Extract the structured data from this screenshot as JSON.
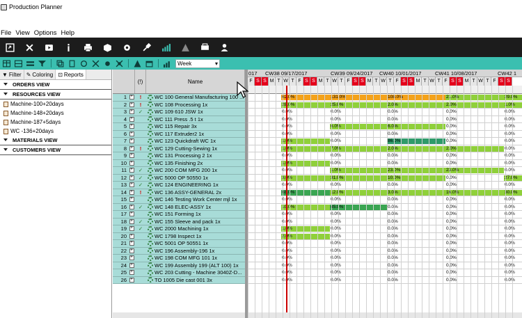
{
  "window": {
    "title": "Production Planner"
  },
  "menu": [
    "File",
    "View",
    "Options",
    "Help"
  ],
  "toolbar_main": [
    "save-icon",
    "close-icon",
    "play-icon",
    "info-icon",
    "print-icon",
    "box-icon",
    "gear-icon",
    "tools-icon",
    "bar-chart-icon",
    "warning-icon",
    "truck-icon",
    "user-icon"
  ],
  "toolbar_sub": {
    "icons": [
      "table-icon",
      "table-split-icon",
      "list-icon",
      "filter-icon",
      "copy-icon",
      "paste-icon",
      "refresh-icon",
      "plan-icon",
      "replan-icon",
      "unplan-icon",
      "warning-icon",
      "schedule-icon",
      "bar-chart-icon"
    ],
    "period": "Week"
  },
  "left_panel": {
    "tabs": [
      "Filter",
      "Coloring",
      "Reports"
    ],
    "sections": [
      {
        "title": "ORDERS VIEW",
        "items": []
      },
      {
        "title": "RESOURCES VIEW",
        "items": [
          "Machine-100+20days",
          "Machine-148+20days",
          "Machine-187+5days",
          "WC -136+20days"
        ]
      },
      {
        "title": "MATERIALS VIEW",
        "items": []
      },
      {
        "title": "CUSTOMERS VIEW",
        "items": []
      }
    ]
  },
  "grid": {
    "col_flag": "(!)",
    "col_name": "Name",
    "rows": [
      {
        "n": "1",
        "flag": "!",
        "name": "WC 100 General Manufacturing 100 ..."
      },
      {
        "n": "2",
        "flag": "!",
        "name": "WC 108 Processing 1x"
      },
      {
        "n": "3",
        "flag": "✓",
        "name": "WC 109 610 JSW 1x"
      },
      {
        "n": "4",
        "flag": "",
        "name": "WC 111 Press .5 t 1x"
      },
      {
        "n": "5",
        "flag": "",
        "name": "WC 115 Repair 3x"
      },
      {
        "n": "6",
        "flag": "",
        "name": "WC 117 Extruder2 1x"
      },
      {
        "n": "7",
        "flag": "",
        "name": "WC 123 Quickdraft WC 1x"
      },
      {
        "n": "8",
        "flag": "!",
        "name": "WC 129 Cutting-Sewing 1x"
      },
      {
        "n": "9",
        "flag": "",
        "name": "WC 131 Processing 2 1x"
      },
      {
        "n": "10",
        "flag": "",
        "name": "WC 135 Finishing 2x"
      },
      {
        "n": "11",
        "flag": "✓",
        "name": "WC 200 COM MFG 200 1x"
      },
      {
        "n": "12",
        "flag": "✓",
        "name": "WC 5000 OP 50550 1x"
      },
      {
        "n": "13",
        "flag": "✓",
        "name": "WC 124 ENGINEERING 1x"
      },
      {
        "n": "14",
        "flag": "!",
        "name": "WC 136 ASSY-GENERAL 2x"
      },
      {
        "n": "15",
        "flag": "",
        "name": "WC 146 Testing Work Center mjl 1x"
      },
      {
        "n": "16",
        "flag": "✓",
        "name": "WC 148 ELEC-ASSY 1x"
      },
      {
        "n": "17",
        "flag": "",
        "name": "WC 151 Forming 1x"
      },
      {
        "n": "18",
        "flag": "✓",
        "name": "WC 155 Sleeve and pack 1x"
      },
      {
        "n": "19",
        "flag": "✓",
        "name": "WC 2000 Machining 1x"
      },
      {
        "n": "20",
        "flag": "",
        "name": "WC 1798 Inspect 1x"
      },
      {
        "n": "21",
        "flag": "",
        "name": "WC 5001 OP 50551 1x"
      },
      {
        "n": "22",
        "flag": "",
        "name": "WC 196 Assembly-196 1x"
      },
      {
        "n": "23",
        "flag": "",
        "name": "WC 198 COM MFG 101 1x"
      },
      {
        "n": "24",
        "flag": "",
        "name": "WC 199 Assembly 199 (ALT 100) 1x"
      },
      {
        "n": "25",
        "flag": "",
        "name": "WC 203 Cutting - Machine 3040Z-D..."
      },
      {
        "n": "26",
        "flag": "",
        "name": "TO 1005 Die cast 001 3x"
      }
    ]
  },
  "timeline": {
    "weeks": [
      "017",
      "CW38  09/17/2017",
      "CW39  09/24/2017",
      "CW40  10/01/2017",
      "CW41  10/08/2017",
      "CW42  1"
    ],
    "days": [
      "F",
      "S",
      "S",
      "M",
      "T",
      "W",
      "T",
      "F",
      "S",
      "S",
      "M",
      "T",
      "W",
      "T",
      "F",
      "S",
      "S",
      "M",
      "T",
      "W",
      "T",
      "F",
      "S",
      "S",
      "M",
      "T",
      "W",
      "T",
      "F",
      "S",
      "S",
      "M",
      "T",
      "W",
      "T",
      "F",
      "S",
      "S"
    ],
    "load": [
      [
        "62.0%",
        "131.0%",
        "108.0%",
        "21.0%",
        "29.0%"
      ],
      [
        "28.0%",
        "25.0%",
        "2.0%",
        "2.0%",
        "1.0%"
      ],
      [
        "0.0%",
        "0.0%",
        "0.0%",
        "0.0%",
        "0.0%"
      ],
      [
        "0.0%",
        "0.0%",
        "0.0%",
        "0.0%",
        "0.0%"
      ],
      [
        "0.0%",
        "6.0%",
        "6.0%",
        "0.0%",
        "0.0%"
      ],
      [
        "0.0%",
        "0.0%",
        "0.0%",
        "0.0%",
        "0.0%"
      ],
      [
        "1.0%",
        "0.0%",
        "86.0%",
        "0.0%",
        "0.0%"
      ],
      [
        "1.0%",
        "7.0%",
        "2.0%",
        "2.0%",
        "0.0%"
      ],
      [
        "0.0%",
        "0.0%",
        "0.0%",
        "0.0%",
        "0.0%"
      ],
      [
        "1.0%",
        "0.0%",
        "0.0%",
        "0.0%",
        "0.0%"
      ],
      [
        "0.0%",
        "1.0%",
        "23.0%",
        "23.0%",
        "0.0%"
      ],
      [
        "3.0%",
        "31.0%",
        "10.0%",
        "0.0%",
        "27.0%"
      ],
      [
        "0.0%",
        "0.0%",
        "0.0%",
        "0.0%",
        "0.0%"
      ],
      [
        "68.0%",
        "12.0%",
        "3.0%",
        "16.0%",
        "30.0%"
      ],
      [
        "0.0%",
        "0.0%",
        "0.0%",
        "0.0%",
        "0.0%"
      ],
      [
        "10.0%",
        "45.0%",
        "0.0%",
        "0.0%",
        "0.0%"
      ],
      [
        "0.0%",
        "0.0%",
        "0.0%",
        "0.0%",
        "0.0%"
      ],
      [
        "0.0%",
        "0.0%",
        "0.0%",
        "0.0%",
        "0.0%"
      ],
      [
        "1.0%",
        "0.0%",
        "0.0%",
        "0.0%",
        "0.0%"
      ],
      [
        "2.0%",
        "0.0%",
        "0.0%",
        "0.0%",
        "0.0%"
      ],
      [
        "0.0%",
        "0.0%",
        "0.0%",
        "0.0%",
        "0.0%"
      ],
      [
        "0.0%",
        "0.0%",
        "0.0%",
        "0.0%",
        "0.0%"
      ],
      [
        "0.0%",
        "0.0%",
        "0.0%",
        "0.0%",
        "0.0%"
      ],
      [
        "0.0%",
        "0.0%",
        "0.0%",
        "0.0%",
        "0.0%"
      ],
      [
        "0.0%",
        "0.0%",
        "0.0%",
        "0.0%",
        "0.0%"
      ],
      [
        "0.0%",
        "0.0%",
        "0.0%",
        "0.0%",
        "0.0%"
      ]
    ],
    "colors": {
      "low": "#8fd03a",
      "mid": "#3aa552",
      "high": "#f4a21a",
      "zero": "#ffffff",
      "weekend": "#e4001b"
    }
  }
}
